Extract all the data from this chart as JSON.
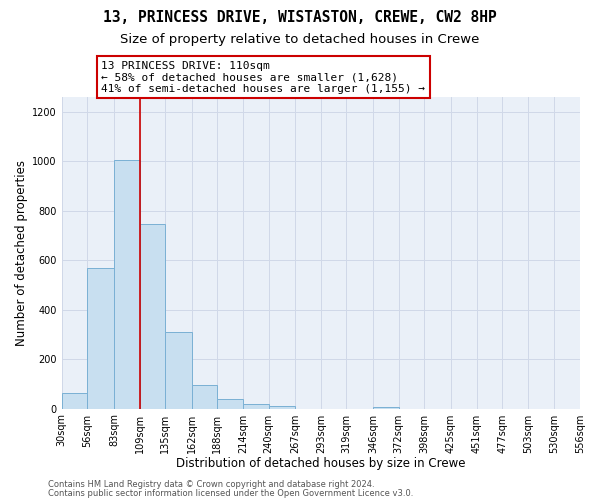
{
  "title": "13, PRINCESS DRIVE, WISTASTON, CREWE, CW2 8HP",
  "subtitle": "Size of property relative to detached houses in Crewe",
  "bar_edges": [
    30,
    56,
    83,
    109,
    135,
    162,
    188,
    214,
    240,
    267,
    293,
    319,
    346,
    372,
    398,
    425,
    451,
    477,
    503,
    530,
    556
  ],
  "bar_heights": [
    65,
    570,
    1005,
    745,
    310,
    95,
    40,
    20,
    10,
    0,
    0,
    0,
    5,
    0,
    0,
    0,
    0,
    0,
    0,
    0
  ],
  "bar_color": "#c8dff0",
  "bar_edge_color": "#7ab0d4",
  "bar_linewidth": 0.7,
  "marker_x": 109,
  "marker_color": "#cc0000",
  "annotation_box_color": "#cc0000",
  "annotation_text_line1": "13 PRINCESS DRIVE: 110sqm",
  "annotation_text_line2": "← 58% of detached houses are smaller (1,628)",
  "annotation_text_line3": "41% of semi-detached houses are larger (1,155) →",
  "xlabel": "Distribution of detached houses by size in Crewe",
  "ylabel": "Number of detached properties",
  "ylim": [
    0,
    1260
  ],
  "xlim": [
    30,
    556
  ],
  "xtick_labels": [
    "30sqm",
    "56sqm",
    "83sqm",
    "109sqm",
    "135sqm",
    "162sqm",
    "188sqm",
    "214sqm",
    "240sqm",
    "267sqm",
    "293sqm",
    "319sqm",
    "346sqm",
    "372sqm",
    "398sqm",
    "425sqm",
    "451sqm",
    "477sqm",
    "503sqm",
    "530sqm",
    "556sqm"
  ],
  "xtick_positions": [
    30,
    56,
    83,
    109,
    135,
    162,
    188,
    214,
    240,
    267,
    293,
    319,
    346,
    372,
    398,
    425,
    451,
    477,
    503,
    530,
    556
  ],
  "ytick_positions": [
    0,
    200,
    400,
    600,
    800,
    1000,
    1200
  ],
  "ytick_labels": [
    "0",
    "200",
    "400",
    "600",
    "800",
    "1000",
    "1200"
  ],
  "grid_color": "#d0d8e8",
  "background_color": "#eaf0f8",
  "footer_line1": "Contains HM Land Registry data © Crown copyright and database right 2024.",
  "footer_line2": "Contains public sector information licensed under the Open Government Licence v3.0.",
  "title_fontsize": 10.5,
  "subtitle_fontsize": 9.5,
  "axis_label_fontsize": 8.5,
  "tick_fontsize": 7,
  "annotation_fontsize": 8,
  "footer_fontsize": 6
}
